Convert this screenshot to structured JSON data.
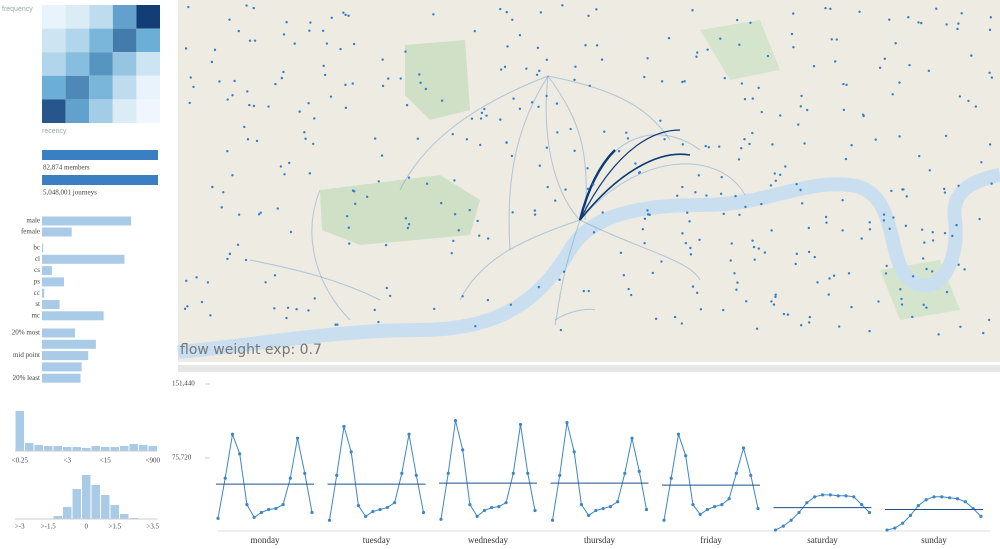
{
  "map": {
    "caption": "flow weight exp: 0.7"
  },
  "chart_data": [
    {
      "type": "heatmap",
      "y_label": "frequency",
      "x_label": "recency",
      "values": [
        [
          5,
          10,
          20,
          55,
          95
        ],
        [
          15,
          25,
          45,
          70,
          50
        ],
        [
          25,
          40,
          60,
          35,
          15
        ],
        [
          50,
          65,
          45,
          20,
          5
        ],
        [
          85,
          55,
          30,
          10,
          3
        ]
      ]
    },
    {
      "type": "progress",
      "color": "#3a7fc1",
      "categories": [
        "members",
        "journeys"
      ],
      "values": [
        82874,
        5048001
      ],
      "value_labels": [
        "82,874 members",
        "5,048,001 journeys"
      ]
    },
    {
      "type": "hbar",
      "color": "#a9cbe8",
      "categories": [
        "male",
        "female"
      ],
      "values": [
        81,
        27
      ]
    },
    {
      "type": "hbar",
      "color": "#a9cbe8",
      "categories": [
        "bc",
        "cl",
        "cs",
        "ps",
        "cc",
        "st",
        "mc"
      ],
      "values": [
        1,
        75,
        9,
        20,
        2,
        16,
        56
      ]
    },
    {
      "type": "hbar",
      "color": "#a9cbe8",
      "categories": [
        "20% most",
        null,
        "mid point",
        null,
        "20% least"
      ],
      "values": [
        30,
        49,
        42,
        36,
        35
      ]
    },
    {
      "type": "histogram",
      "color": "#a9cbe8",
      "categories": [
        "<0.25",
        null,
        null,
        null,
        null,
        "<3",
        null,
        null,
        null,
        "<15",
        null,
        null,
        null,
        null,
        "<900"
      ],
      "values": [
        40,
        8,
        6,
        5,
        5,
        4,
        4,
        3,
        5,
        4,
        4,
        5,
        7,
        6,
        5
      ]
    },
    {
      "type": "histogram",
      "color": "#a9cbe8",
      "categories": [
        ">-3",
        null,
        null,
        ">-1.5",
        null,
        null,
        null,
        "0",
        null,
        null,
        ">1.5",
        null,
        null,
        null,
        ">3.5"
      ],
      "values": [
        0,
        0,
        0,
        0,
        3,
        12,
        30,
        44,
        34,
        24,
        14,
        5,
        1,
        0,
        0
      ]
    },
    {
      "type": "line",
      "ylim": [
        0,
        151440
      ],
      "yticks": [
        {
          "value": 151440,
          "label": "151,440"
        },
        {
          "value": 75720,
          "label": "75,720"
        }
      ],
      "series": [
        {
          "name": "monday",
          "color": "#3d86c6",
          "mean": 49000,
          "values": [
            14000,
            55000,
            100000,
            80000,
            28000,
            15000,
            20000,
            23000,
            24000,
            28000,
            55000,
            96000,
            60000,
            20000
          ]
        },
        {
          "name": "tuesday",
          "color": "#3d86c6",
          "mean": 49000,
          "values": [
            12000,
            58000,
            108000,
            82000,
            27000,
            16000,
            21000,
            23000,
            25000,
            30000,
            60000,
            100000,
            58000,
            20000
          ]
        },
        {
          "name": "wednesday",
          "color": "#3d86c6",
          "mean": 50000,
          "values": [
            13000,
            60000,
            114000,
            84000,
            28000,
            16000,
            22000,
            25000,
            26000,
            30000,
            60000,
            110000,
            60000,
            22000
          ]
        },
        {
          "name": "thursday",
          "color": "#3d86c6",
          "mean": 50000,
          "values": [
            12000,
            58000,
            112000,
            82000,
            28000,
            17000,
            22000,
            24000,
            26000,
            31000,
            60000,
            96000,
            62000,
            23000
          ]
        },
        {
          "name": "friday",
          "color": "#3d86c6",
          "mean": 48000,
          "values": [
            12000,
            55000,
            100000,
            78000,
            28000,
            18000,
            23000,
            26000,
            28000,
            34000,
            60000,
            86000,
            58000,
            24000
          ]
        },
        {
          "name": "saturday",
          "color": "#3d86c6",
          "mean": 25000,
          "values": [
            2000,
            6000,
            12000,
            20000,
            30000,
            36000,
            38000,
            38000,
            37000,
            37000,
            36000,
            28000,
            20000
          ]
        },
        {
          "name": "sunday",
          "color": "#3d86c6",
          "mean": 23000,
          "values": [
            2000,
            4000,
            9000,
            17000,
            27000,
            33000,
            36000,
            36000,
            35000,
            34000,
            31000,
            24000,
            16000
          ]
        }
      ]
    }
  ]
}
